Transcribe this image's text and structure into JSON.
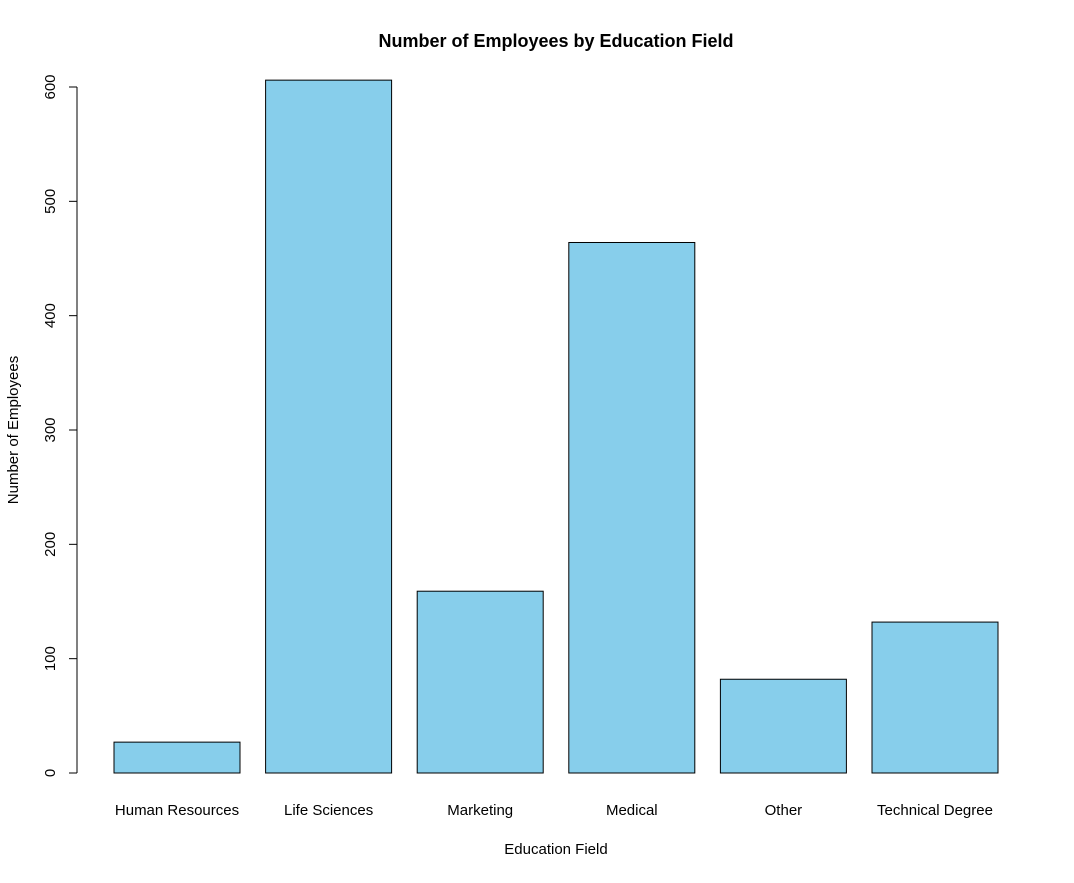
{
  "chart_data": {
    "type": "bar",
    "title": "Number of Employees by Education Field",
    "xlabel": "Education Field",
    "ylabel": "Number of Employees",
    "categories": [
      "Human Resources",
      "Life Sciences",
      "Marketing",
      "Medical",
      "Other",
      "Technical Degree"
    ],
    "values": [
      27,
      606,
      159,
      464,
      82,
      132
    ],
    "ylim": [
      0,
      606
    ],
    "yticks": [
      "0",
      "100",
      "200",
      "300",
      "400",
      "500",
      "600"
    ],
    "grid": false,
    "legend": "none",
    "bar_color": "#87CEEB",
    "bar_border_color": "#000000"
  }
}
